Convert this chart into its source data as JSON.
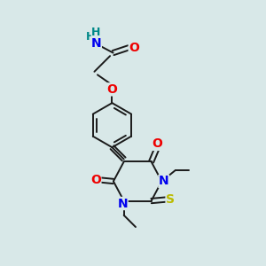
{
  "background_color": "#d8e8e8",
  "bond_color": "#1a1a1a",
  "atom_colors": {
    "N": "#0000ee",
    "O": "#ee0000",
    "S": "#bbbb00",
    "H": "#008888",
    "C": "#1a1a1a"
  },
  "font_size_atoms": 10,
  "line_width": 1.4,
  "figsize": [
    3.0,
    3.0
  ],
  "dpi": 100
}
